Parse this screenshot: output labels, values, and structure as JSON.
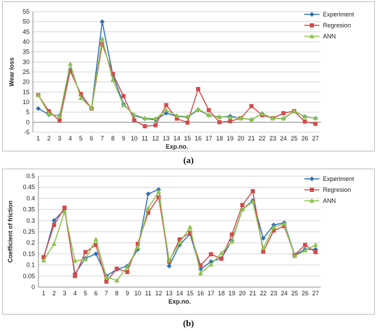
{
  "chart_data": [
    {
      "type": "line",
      "xlabel": "Exp.no.",
      "ylabel": "Wear loss",
      "ylim": [
        -5,
        55
      ],
      "yticks": [
        -5,
        0,
        5,
        10,
        15,
        20,
        25,
        30,
        35,
        40,
        45,
        50,
        55
      ],
      "grid": true,
      "legend": "top-right",
      "caption": "(a)",
      "categories": [
        "1",
        "2",
        "3",
        "4",
        "5",
        "6",
        "7",
        "8",
        "9",
        "10",
        "11",
        "12",
        "13",
        "14",
        "15",
        "16",
        "17",
        "18",
        "19",
        "20",
        "21",
        "22",
        "23",
        "24",
        "25",
        "26",
        "27"
      ],
      "series": [
        {
          "name": "Experiment",
          "color": "#2f6fb5",
          "marker": "diamond",
          "values": [
            6.8,
            3.8,
            3.3,
            26,
            13.5,
            6.9,
            50,
            23.5,
            9,
            3.3,
            1.8,
            1.2,
            4.5,
            3,
            2.5,
            6.2,
            3.5,
            2.5,
            3,
            2,
            1.3,
            4.2,
            2,
            1.8,
            5.5,
            2.8,
            2
          ]
        },
        {
          "name": "Regresion",
          "color": "#d24b4b",
          "marker": "square",
          "values": [
            13.5,
            5.5,
            0.8,
            25.5,
            14,
            6.8,
            39,
            24,
            13,
            1,
            -2,
            -1.5,
            8.5,
            1.8,
            -0.2,
            16.5,
            6,
            0,
            0.5,
            2,
            8,
            3.5,
            2,
            4.5,
            5.5,
            0.3,
            -0.8
          ]
        },
        {
          "name": "ANN",
          "color": "#8bc34a",
          "marker": "triangle",
          "values": [
            13.5,
            4.2,
            3,
            29,
            12,
            7,
            41.5,
            21,
            8.5,
            3.8,
            2,
            1.8,
            6,
            3.2,
            2.8,
            6.5,
            3.6,
            2.7,
            2.5,
            2,
            1.4,
            4.2,
            2,
            1.9,
            5.6,
            2.7,
            2
          ]
        }
      ]
    },
    {
      "type": "line",
      "xlabel": "Exp.no.",
      "ylabel": "Coefficient of friction",
      "ylim": [
        0,
        0.5
      ],
      "yticks": [
        0,
        0.05,
        0.1,
        0.15,
        0.2,
        0.25,
        0.3,
        0.35,
        0.4,
        0.45,
        0.5
      ],
      "yticklabels": [
        "0",
        "0.05",
        "0.1",
        "0.15",
        "0.2",
        "0.25",
        "0.3",
        "0.35",
        "0.4",
        "0.45",
        "0.5"
      ],
      "grid": true,
      "legend": "top-right",
      "caption": "(b)",
      "categories": [
        "1",
        "2",
        "3",
        "4",
        "5",
        "6",
        "7",
        "8",
        "9",
        "10",
        "11",
        "12",
        "13",
        "14",
        "15",
        "16",
        "17",
        "18",
        "19",
        "20",
        "21",
        "22",
        "23",
        "24",
        "25",
        "26",
        "27"
      ],
      "series": [
        {
          "name": "Experiment",
          "color": "#2f6fb5",
          "marker": "diamond",
          "values": [
            0.13,
            0.3,
            0.35,
            0.06,
            0.13,
            0.15,
            0.05,
            0.08,
            0.095,
            0.17,
            0.42,
            0.44,
            0.095,
            0.19,
            0.24,
            0.08,
            0.115,
            0.13,
            0.21,
            0.35,
            0.39,
            0.22,
            0.28,
            0.29,
            0.145,
            0.17,
            0.17
          ]
        },
        {
          "name": "Regresion",
          "color": "#d24b4b",
          "marker": "square",
          "values": [
            0.135,
            0.28,
            0.358,
            0.05,
            0.158,
            0.19,
            0.025,
            0.083,
            0.068,
            0.195,
            0.335,
            0.405,
            0.115,
            0.215,
            0.245,
            0.098,
            0.148,
            0.128,
            0.237,
            0.37,
            0.432,
            0.16,
            0.255,
            0.275,
            0.145,
            0.19,
            0.158
          ]
        },
        {
          "name": "ANN",
          "color": "#8bc34a",
          "marker": "triangle",
          "values": [
            0.12,
            0.195,
            0.34,
            0.118,
            0.125,
            0.215,
            0.045,
            0.03,
            0.09,
            0.18,
            0.355,
            0.43,
            0.12,
            0.2,
            0.27,
            0.062,
            0.102,
            0.153,
            0.205,
            0.35,
            0.385,
            0.175,
            0.27,
            0.285,
            0.14,
            0.165,
            0.19
          ]
        }
      ]
    }
  ]
}
